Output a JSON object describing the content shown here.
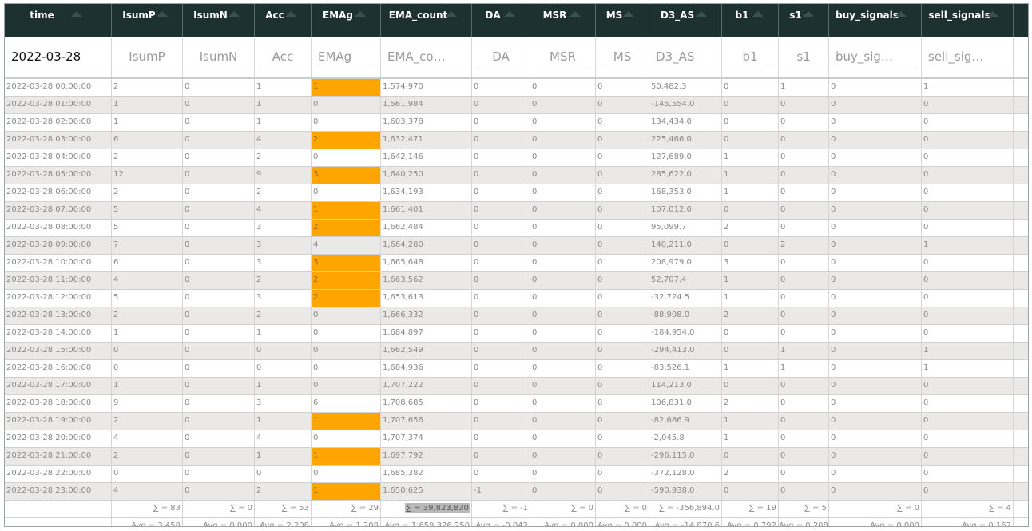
{
  "columns": [
    {
      "key": "time",
      "label": "time",
      "width": 134
    },
    {
      "key": "IsumP",
      "label": "IsumP",
      "width": 89
    },
    {
      "key": "IsumN",
      "label": "IsumN",
      "width": 90
    },
    {
      "key": "Acc",
      "label": "Acc",
      "width": 71
    },
    {
      "key": "EMAg",
      "label": "EMAg",
      "width": 87
    },
    {
      "key": "EMA_count",
      "label": "EMA_count",
      "width": 114
    },
    {
      "key": "DA",
      "label": "DA",
      "width": 73
    },
    {
      "key": "MSR",
      "label": "MSR",
      "width": 82
    },
    {
      "key": "MS",
      "label": "MS",
      "width": 67
    },
    {
      "key": "D3_AS",
      "label": "D3_AS",
      "width": 91
    },
    {
      "key": "b1",
      "label": "b1",
      "width": 71
    },
    {
      "key": "s1",
      "label": "s1",
      "width": 63
    },
    {
      "key": "buy_signals",
      "label": "buy_signals",
      "width": 116
    },
    {
      "key": "sell_signals",
      "label": "sell_signals",
      "width": 115
    }
  ],
  "filters": {
    "time": "2022-03-28",
    "IsumP": "IsumP",
    "IsumN": "IsumN",
    "Acc": "Acc",
    "EMAg": "EMAg",
    "EMA_count": "EMA_co…",
    "DA": "DA",
    "MSR": "MSR",
    "MS": "MS",
    "D3_AS": "D3_AS",
    "b1": "b1",
    "s1": "s1",
    "buy_signals": "buy_sig…",
    "sell_signals": "sell_sig…"
  },
  "highlight_color": "#ffa500",
  "rows": [
    [
      "2022-03-28 00:00:00",
      "2",
      "0",
      "1",
      "1",
      "1,574,970",
      "0",
      "0",
      "0",
      "50,482.3",
      "0",
      "1",
      "0",
      "1"
    ],
    [
      "2022-03-28 01:00:00",
      "1",
      "0",
      "1",
      "0",
      "1,561,984",
      "0",
      "0",
      "0",
      "-145,554.0",
      "0",
      "0",
      "0",
      "0"
    ],
    [
      "2022-03-28 02:00:00",
      "1",
      "0",
      "1",
      "0",
      "1,603,378",
      "0",
      "0",
      "0",
      "134,434.0",
      "0",
      "0",
      "0",
      "0"
    ],
    [
      "2022-03-28 03:00:00",
      "6",
      "0",
      "4",
      "2",
      "1,632,471",
      "0",
      "0",
      "0",
      "225,466.0",
      "0",
      "0",
      "0",
      "0"
    ],
    [
      "2022-03-28 04:00:00",
      "2",
      "0",
      "2",
      "0",
      "1,642,146",
      "0",
      "0",
      "0",
      "127,689.0",
      "1",
      "0",
      "0",
      "0"
    ],
    [
      "2022-03-28 05:00:00",
      "12",
      "0",
      "9",
      "3",
      "1,640,250",
      "0",
      "0",
      "0",
      "285,622.0",
      "1",
      "0",
      "0",
      "0"
    ],
    [
      "2022-03-28 06:00:00",
      "2",
      "0",
      "2",
      "0",
      "1,634,193",
      "0",
      "0",
      "0",
      "168,353.0",
      "1",
      "0",
      "0",
      "0"
    ],
    [
      "2022-03-28 07:00:00",
      "5",
      "0",
      "4",
      "1",
      "1,661,401",
      "0",
      "0",
      "0",
      "107,012.0",
      "0",
      "0",
      "0",
      "0"
    ],
    [
      "2022-03-28 08:00:00",
      "5",
      "0",
      "3",
      "2",
      "1,662,484",
      "0",
      "0",
      "0",
      "95,099.7",
      "2",
      "0",
      "0",
      "0"
    ],
    [
      "2022-03-28 09:00:00",
      "7",
      "0",
      "3",
      "4",
      "1,664,280",
      "0",
      "0",
      "0",
      "140,211.0",
      "0",
      "2",
      "0",
      "1"
    ],
    [
      "2022-03-28 10:00:00",
      "6",
      "0",
      "3",
      "3",
      "1,665,648",
      "0",
      "0",
      "0",
      "208,979.0",
      "3",
      "0",
      "0",
      "0"
    ],
    [
      "2022-03-28 11:00:00",
      "4",
      "0",
      "2",
      "2",
      "1,663,562",
      "0",
      "0",
      "0",
      "52,707.4",
      "1",
      "0",
      "0",
      "0"
    ],
    [
      "2022-03-28 12:00:00",
      "5",
      "0",
      "3",
      "2",
      "1,653,613",
      "0",
      "0",
      "0",
      "-32,724.5",
      "1",
      "0",
      "0",
      "0"
    ],
    [
      "2022-03-28 13:00:00",
      "2",
      "0",
      "2",
      "0",
      "1,666,332",
      "0",
      "0",
      "0",
      "-88,908.0",
      "2",
      "0",
      "0",
      "0"
    ],
    [
      "2022-03-28 14:00:00",
      "1",
      "0",
      "1",
      "0",
      "1,684,897",
      "0",
      "0",
      "0",
      "-184,954.0",
      "0",
      "0",
      "0",
      "0"
    ],
    [
      "2022-03-28 15:00:00",
      "0",
      "0",
      "0",
      "0",
      "1,662,549",
      "0",
      "0",
      "0",
      "-294,413.0",
      "0",
      "1",
      "0",
      "1"
    ],
    [
      "2022-03-28 16:00:00",
      "0",
      "0",
      "0",
      "0",
      "1,684,936",
      "0",
      "0",
      "0",
      "-83,526.1",
      "1",
      "1",
      "0",
      "1"
    ],
    [
      "2022-03-28 17:00:00",
      "1",
      "0",
      "1",
      "0",
      "1,707,222",
      "0",
      "0",
      "0",
      "114,213.0",
      "0",
      "0",
      "0",
      "0"
    ],
    [
      "2022-03-28 18:00:00",
      "9",
      "0",
      "3",
      "6",
      "1,708,685",
      "0",
      "0",
      "0",
      "106,831.0",
      "2",
      "0",
      "0",
      "0"
    ],
    [
      "2022-03-28 19:00:00",
      "2",
      "0",
      "1",
      "1",
      "1,707,656",
      "0",
      "0",
      "0",
      "-82,686.9",
      "1",
      "0",
      "0",
      "0"
    ],
    [
      "2022-03-28 20:00:00",
      "4",
      "0",
      "4",
      "0",
      "1,707,374",
      "0",
      "0",
      "0",
      "-2,045.8",
      "1",
      "0",
      "0",
      "0"
    ],
    [
      "2022-03-28 21:00:00",
      "2",
      "0",
      "1",
      "1",
      "1,697,792",
      "0",
      "0",
      "0",
      "-296,115.0",
      "0",
      "0",
      "0",
      "0"
    ],
    [
      "2022-03-28 22:00:00",
      "0",
      "0",
      "0",
      "0",
      "1,685,382",
      "0",
      "0",
      "0",
      "-372,128.0",
      "2",
      "0",
      "0",
      "0"
    ],
    [
      "2022-03-28 23:00:00",
      "4",
      "0",
      "2",
      "1",
      "1,650,625",
      "-1",
      "0",
      "0",
      "-590,938.0",
      "0",
      "0",
      "0",
      "0"
    ]
  ],
  "highlighted_emag_rows": [
    0,
    3,
    5,
    7,
    8,
    10,
    11,
    12,
    19,
    21,
    23
  ],
  "sums": [
    "",
    "∑ = 83",
    "∑ = 0",
    "∑ = 53",
    "∑ = 29",
    "∑ = 39,823,830",
    "∑ = -1",
    "∑ = 0",
    "∑ = 0",
    "∑ = -356,894.0",
    "∑ = 19",
    "∑ = 5",
    "∑ = 0",
    "∑ = 4"
  ],
  "avgs": [
    "",
    "Avg = 3.458",
    "Avg = 0.000",
    "Avg = 2.208",
    "Avg = 1.208",
    "Avg = 1,659,326.250",
    "Avg = -0.042",
    "Avg = 0.000",
    "Avg = 0.000",
    "Avg = -14,870.6",
    "Avg = 0.792",
    "Avg = 0.208",
    "Avg = 0.000",
    "Avg = 0.167"
  ]
}
